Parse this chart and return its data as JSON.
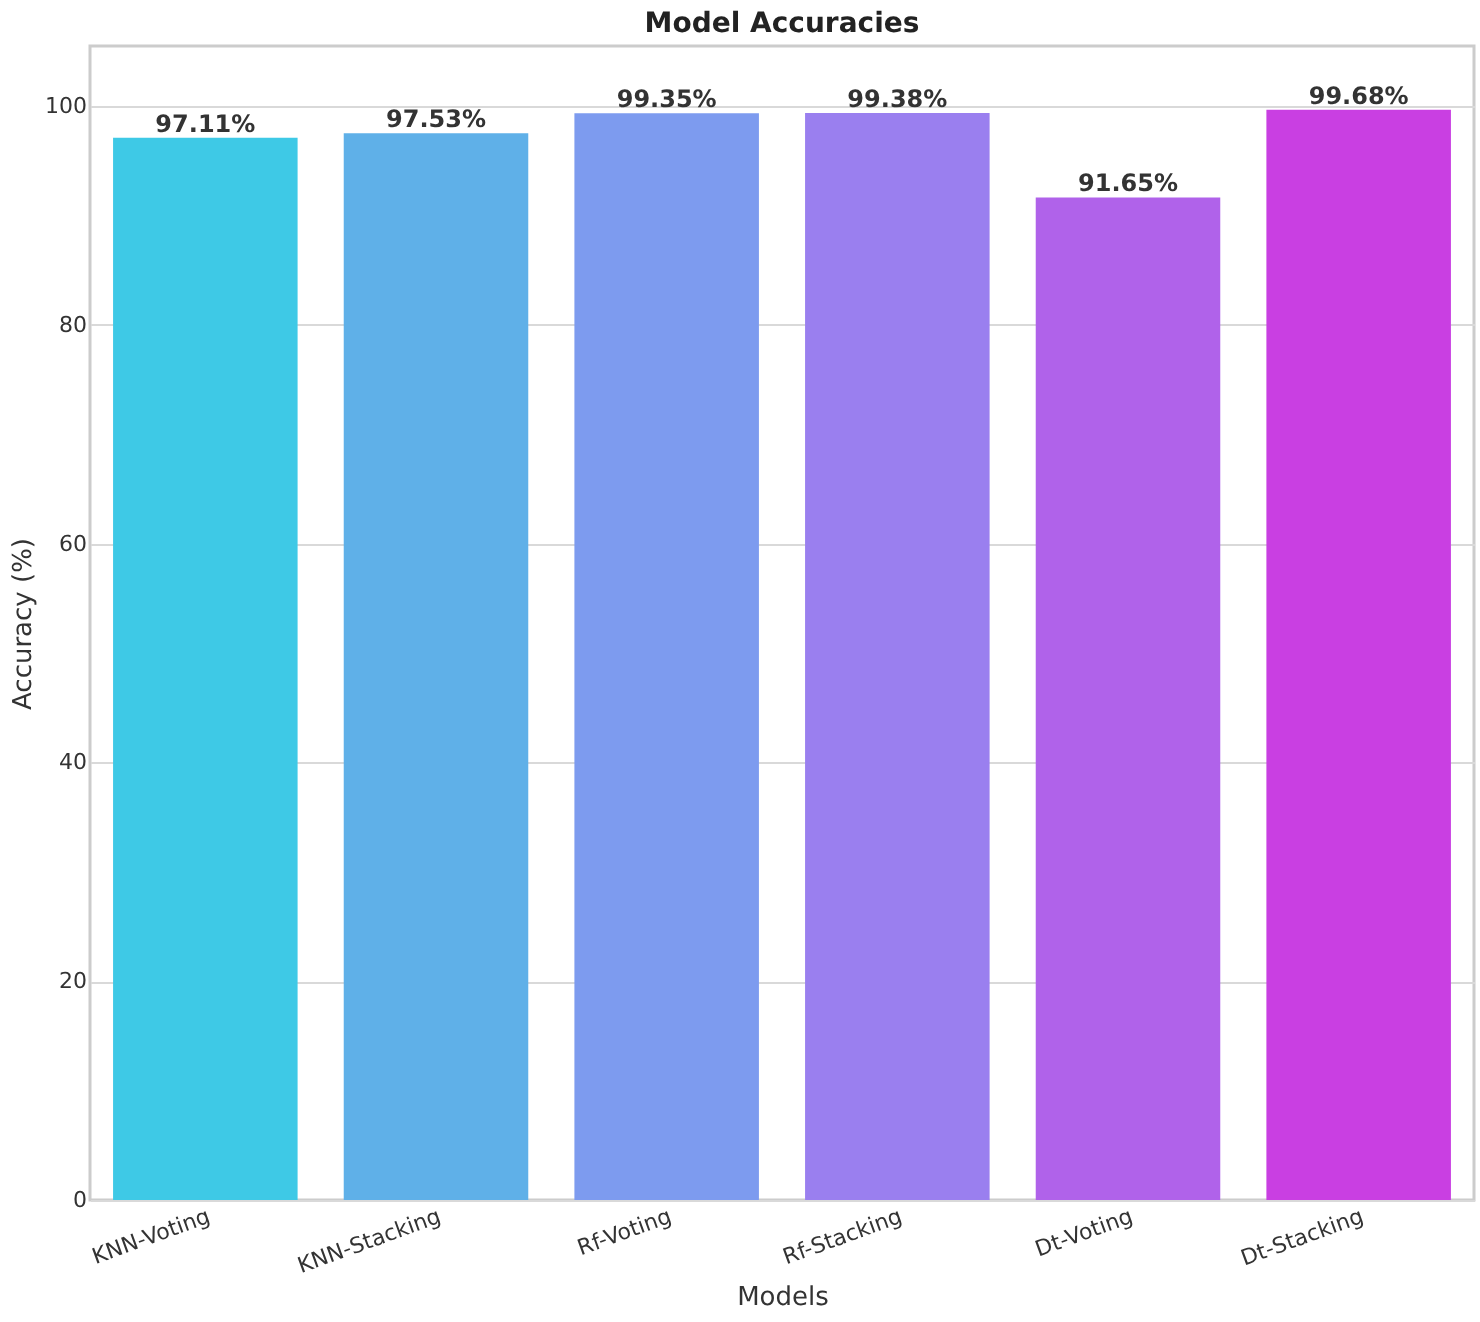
{
  "chart_data": {
    "type": "bar",
    "title": "Model Accuracies",
    "xlabel": "Models",
    "ylabel": "Accuracy (%)",
    "categories": [
      "KNN-Voting",
      "KNN-Stacking",
      "Rf-Voting",
      "Rf-Stacking",
      "Dt-Voting",
      "Dt-Stacking"
    ],
    "values": [
      97.11,
      97.53,
      99.35,
      99.38,
      91.65,
      99.68
    ],
    "colors": [
      "#3ec9e6",
      "#5fb0e8",
      "#7d9bef",
      "#9a7fef",
      "#b062ea",
      "#c93fe2"
    ],
    "value_labels": [
      "97.11%",
      "97.53%",
      "99.35%",
      "99.38%",
      "91.65%",
      "99.68%"
    ],
    "ylim": [
      0,
      105.5
    ],
    "yticks": [
      0,
      20,
      40,
      60,
      80,
      100
    ],
    "grid": "y"
  }
}
